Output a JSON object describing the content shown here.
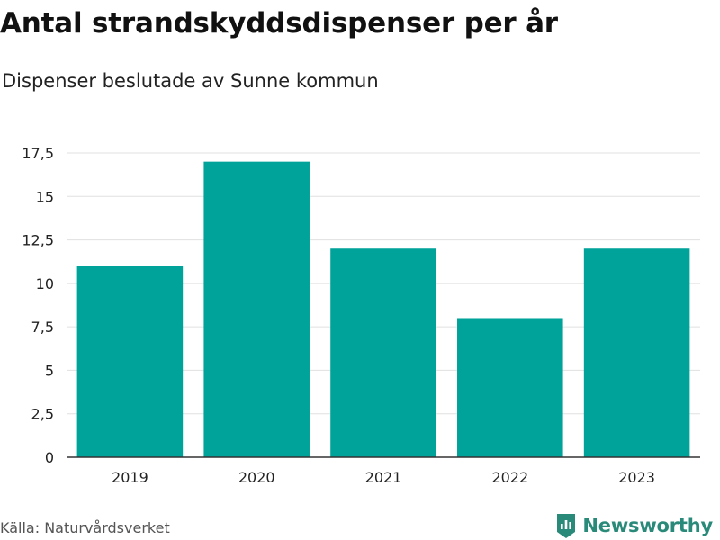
{
  "title": "Antal strandskyddsdispenser per år",
  "subtitle": "Dispenser beslutade av Sunne kommun",
  "source": "Källa: Naturvårdsverket",
  "brand": "Newsworthy",
  "colors": {
    "bar": "#00a39a",
    "grid": "#e0e0e0",
    "axis": "#333333",
    "brand": "#2a8a7a"
  },
  "chart_data": {
    "type": "bar",
    "title": "Antal strandskyddsdispenser per år",
    "subtitle": "Dispenser beslutade av Sunne kommun",
    "xlabel": "",
    "ylabel": "",
    "categories": [
      "2019",
      "2020",
      "2021",
      "2022",
      "2023"
    ],
    "values": [
      11,
      17,
      12,
      8,
      12
    ],
    "ylim": [
      0,
      17.5
    ],
    "yticks": [
      0,
      2.5,
      5,
      7.5,
      10,
      12.5,
      15,
      17.5
    ],
    "ytick_labels": [
      "0",
      "2,5",
      "5",
      "7,5",
      "10",
      "12,5",
      "15",
      "17,5"
    ],
    "grid": true,
    "legend": "none"
  }
}
